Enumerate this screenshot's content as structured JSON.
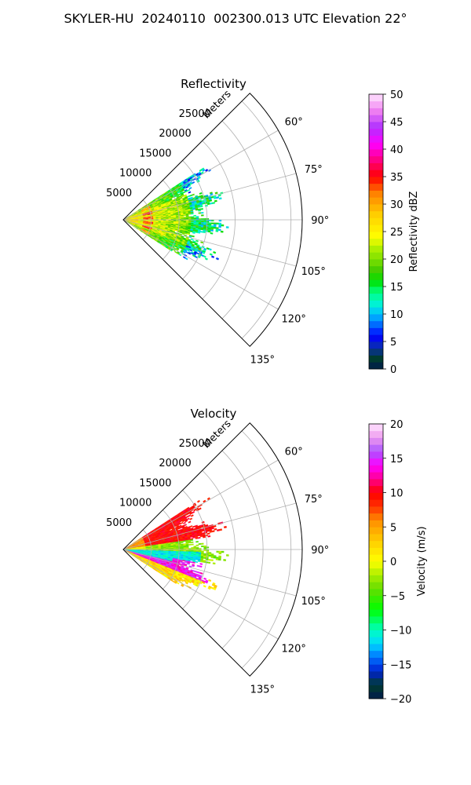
{
  "figure": {
    "title": "SKYLER-HU  20240110  002300.013 UTC Elevation 22°"
  },
  "chart_data": [
    {
      "type": "heatmap",
      "subtype": "polar-sector",
      "title": "Reflectivity",
      "radial_label": "Meters",
      "radial_ticks": [
        5000,
        10000,
        15000,
        20000,
        25000
      ],
      "theta_ticks": [
        "60°",
        "75°",
        "90°",
        "105°",
        "120°",
        "135°"
      ],
      "theta_range_deg": [
        45,
        135
      ],
      "r_range": [
        0,
        32000
      ],
      "grid": true,
      "colorbar": {
        "label": "Reflectivity dBZ",
        "range": [
          0,
          50
        ],
        "ticks": [
          "0",
          "5",
          "10",
          "15",
          "20",
          "25",
          "30",
          "35",
          "40",
          "45",
          "50"
        ]
      },
      "field_summary": [
        {
          "r": [
            0,
            9000
          ],
          "theta": [
            60,
            120
          ],
          "value": 26
        },
        {
          "r": [
            9000,
            17000
          ],
          "theta": [
            58,
            122
          ],
          "value": 20
        },
        {
          "r": [
            3500,
            5500
          ],
          "theta": [
            66,
            112
          ],
          "value": 36
        },
        {
          "r": [
            17000,
            19000
          ],
          "theta": [
            66,
            114
          ],
          "value": 14
        }
      ]
    },
    {
      "type": "heatmap",
      "subtype": "polar-sector",
      "title": "Velocity",
      "radial_label": "Meters",
      "radial_ticks": [
        5000,
        10000,
        15000,
        20000,
        25000
      ],
      "theta_ticks": [
        "60°",
        "75°",
        "90°",
        "105°",
        "120°",
        "135°"
      ],
      "theta_range_deg": [
        45,
        135
      ],
      "r_range": [
        0,
        32000
      ],
      "grid": true,
      "colorbar": {
        "label": "Velocity (m/s)",
        "range": [
          -20,
          20
        ],
        "ticks": [
          "−20",
          "−15",
          "−10",
          "−5",
          "0",
          "5",
          "10",
          "15",
          "20"
        ]
      },
      "field_summary": [
        {
          "r": [
            0,
            19000
          ],
          "theta": [
            58,
            82
          ],
          "value": 9
        },
        {
          "r": [
            0,
            19000
          ],
          "theta": [
            82,
            92
          ],
          "value": -3
        },
        {
          "r": [
            2000,
            14000
          ],
          "theta": [
            92,
            110
          ],
          "value": -11
        },
        {
          "r": [
            5000,
            18000
          ],
          "theta": [
            102,
            118
          ],
          "value": 14
        }
      ]
    }
  ]
}
